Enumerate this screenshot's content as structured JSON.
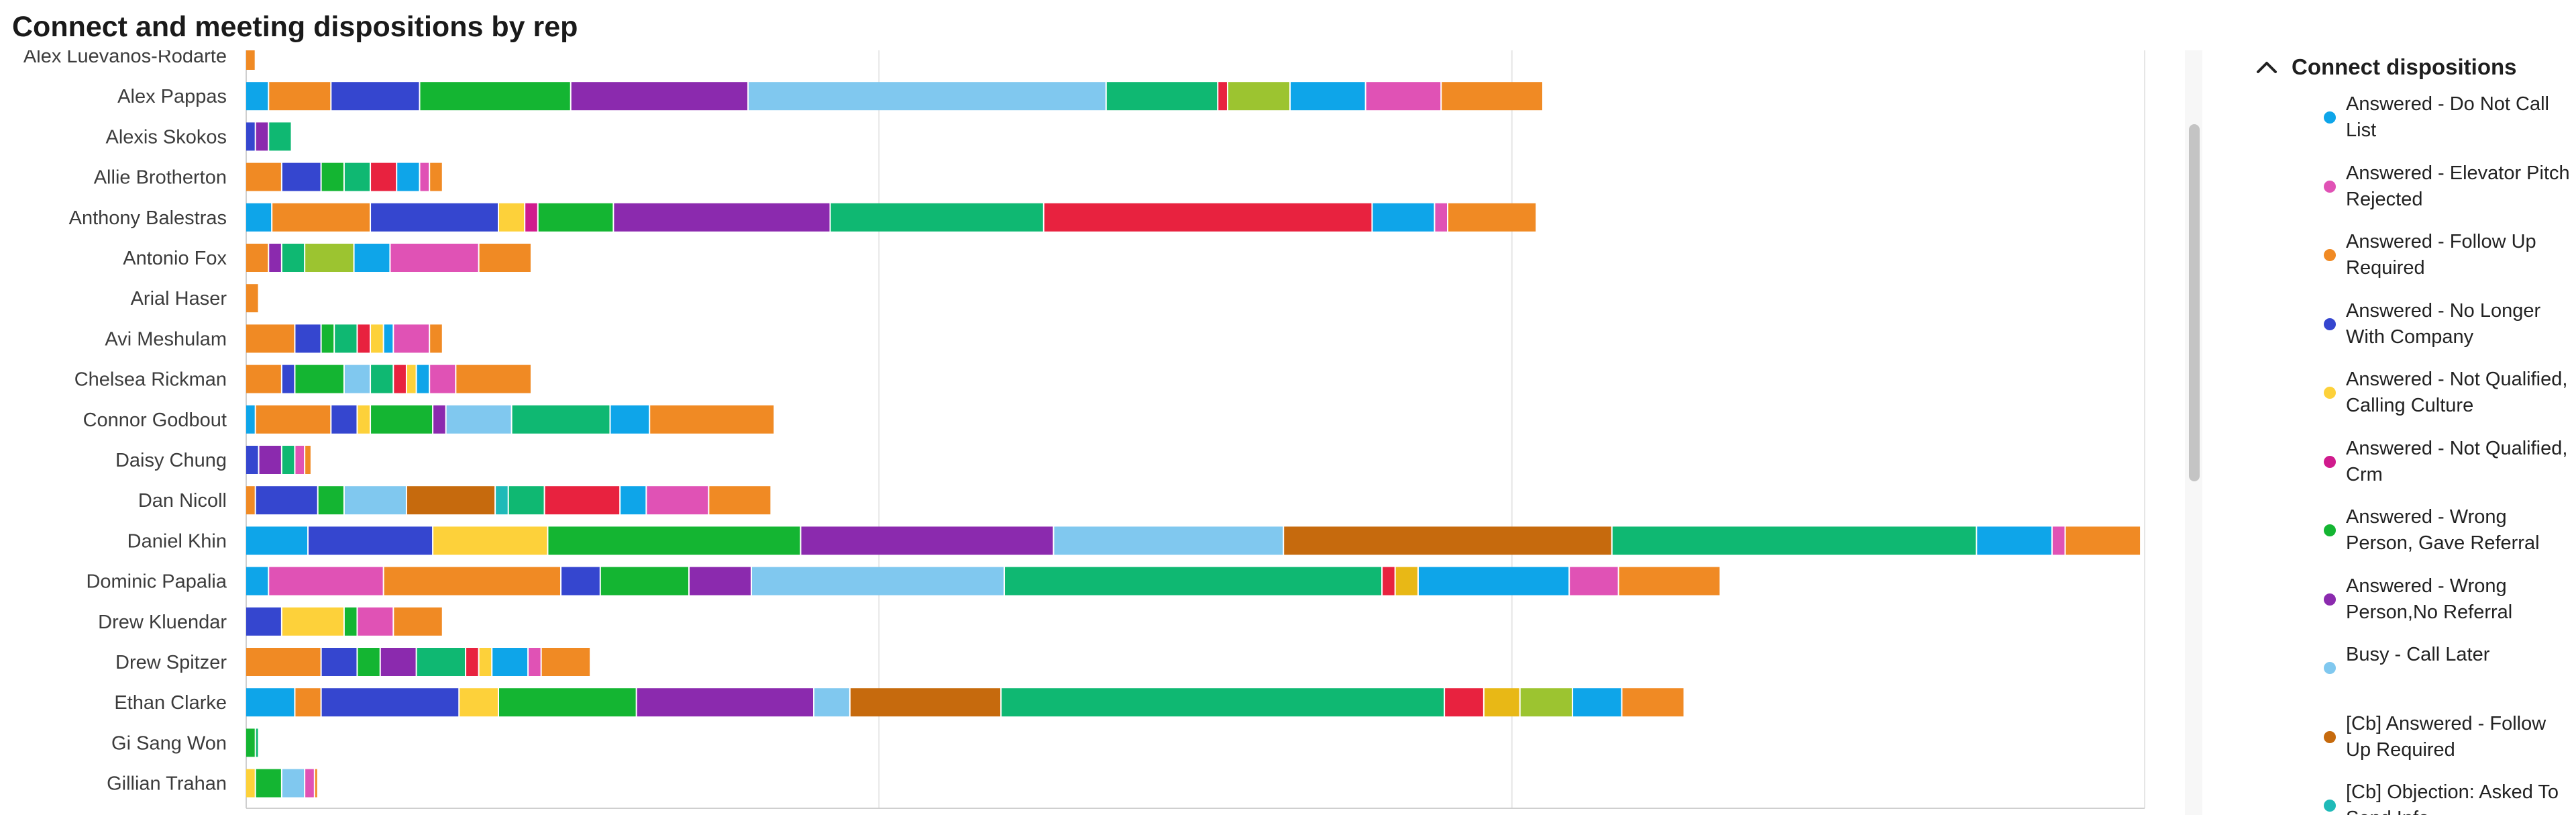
{
  "title": "Connect and meeting dispositions by rep",
  "legend": {
    "title": "Connect dispositions",
    "items": [
      {
        "label": "Answered - Do Not Call List",
        "color": "#0ea5e9"
      },
      {
        "label": "Answered - Elevator Pitch Rejected",
        "color": "#e052b5"
      },
      {
        "label": "Answered - Follow Up Required",
        "color": "#f08a24"
      },
      {
        "label": "Answered - No Longer With Company",
        "color": "#3546cf"
      },
      {
        "label": "Answered - Not Qualified, Calling Culture",
        "color": "#fdd13a"
      },
      {
        "label": "Answered - Not Qualified, Crm",
        "color": "#d01b8d"
      },
      {
        "label": "Answered - Wrong Person, Gave Referral",
        "color": "#14b532"
      },
      {
        "label": "Answered - Wrong Person,No Referral",
        "color": "#8b2aae"
      },
      {
        "label": "Busy - Call Later",
        "color": "#80c8ef"
      },
      {
        "label": "[Cb] Answered - Follow Up Required",
        "color": "#c66a0d"
      },
      {
        "label": "[Cb] Objection: Asked To Send Info",
        "color": "#1fbab8"
      }
    ]
  },
  "chart_data": {
    "type": "bar",
    "orientation": "horizontal",
    "stacked": true,
    "title": "Connect and meeting dispositions by rep",
    "grid": true,
    "categories": [
      "Alex Luevanos-Rodarte",
      "Alex Pappas",
      "Alexis Skokos",
      "Allie Brotherton",
      "Anthony Balestras",
      "Antonio Fox",
      "Arial Haser",
      "Avi Meshulam",
      "Chelsea Rickman",
      "Connor Godbout",
      "Daisy Chung",
      "Dan Nicoll",
      "Daniel Khin",
      "Dominic Papalia",
      "Drew Kluendar",
      "Drew Spitzer",
      "Ethan Clarke",
      "Gi Sang Won",
      "Gillian Trahan"
    ],
    "rows": [
      [
        [
          6,
          "#f08a24"
        ]
      ],
      [
        [
          14,
          "#0ea5e9"
        ],
        [
          38,
          "#f08a24"
        ],
        [
          54,
          "#3546cf"
        ],
        [
          92,
          "#14b532"
        ],
        [
          108,
          "#8b2aae"
        ],
        [
          218,
          "#80c8ef"
        ],
        [
          68,
          "#0fb872"
        ],
        [
          6,
          "#e8223f"
        ],
        [
          38,
          "#9cc430"
        ],
        [
          46,
          "#0ea5e9"
        ],
        [
          46,
          "#e052b5"
        ],
        [
          62,
          "#f08a24"
        ]
      ],
      [
        [
          6,
          "#3546cf"
        ],
        [
          8,
          "#8b2aae"
        ],
        [
          14,
          "#0fb872"
        ]
      ],
      [
        [
          22,
          "#f08a24"
        ],
        [
          24,
          "#3546cf"
        ],
        [
          14,
          "#14b532"
        ],
        [
          16,
          "#0fb872"
        ],
        [
          16,
          "#e8223f"
        ],
        [
          14,
          "#0ea5e9"
        ],
        [
          6,
          "#e052b5"
        ],
        [
          8,
          "#f08a24"
        ]
      ],
      [
        [
          16,
          "#0ea5e9"
        ],
        [
          60,
          "#f08a24"
        ],
        [
          78,
          "#3546cf"
        ],
        [
          16,
          "#fdd13a"
        ],
        [
          8,
          "#d01b8d"
        ],
        [
          46,
          "#14b532"
        ],
        [
          132,
          "#8b2aae"
        ],
        [
          130,
          "#0fb872"
        ],
        [
          200,
          "#e8223f"
        ],
        [
          38,
          "#0ea5e9"
        ],
        [
          8,
          "#e052b5"
        ],
        [
          54,
          "#f08a24"
        ]
      ],
      [
        [
          14,
          "#f08a24"
        ],
        [
          8,
          "#8b2aae"
        ],
        [
          14,
          "#0fb872"
        ],
        [
          30,
          "#9cc430"
        ],
        [
          22,
          "#0ea5e9"
        ],
        [
          54,
          "#e052b5"
        ],
        [
          32,
          "#f08a24"
        ]
      ],
      [
        [
          8,
          "#f08a24"
        ]
      ],
      [
        [
          30,
          "#f08a24"
        ],
        [
          16,
          "#3546cf"
        ],
        [
          8,
          "#14b532"
        ],
        [
          14,
          "#0fb872"
        ],
        [
          8,
          "#e8223f"
        ],
        [
          8,
          "#fdd13a"
        ],
        [
          6,
          "#0ea5e9"
        ],
        [
          22,
          "#e052b5"
        ],
        [
          8,
          "#f08a24"
        ]
      ],
      [
        [
          22,
          "#f08a24"
        ],
        [
          8,
          "#3546cf"
        ],
        [
          30,
          "#14b532"
        ],
        [
          16,
          "#80c8ef"
        ],
        [
          14,
          "#0fb872"
        ],
        [
          8,
          "#e8223f"
        ],
        [
          6,
          "#fdd13a"
        ],
        [
          8,
          "#0ea5e9"
        ],
        [
          16,
          "#e052b5"
        ],
        [
          46,
          "#f08a24"
        ]
      ],
      [
        [
          6,
          "#0ea5e9"
        ],
        [
          46,
          "#f08a24"
        ],
        [
          16,
          "#3546cf"
        ],
        [
          8,
          "#fdd13a"
        ],
        [
          38,
          "#14b532"
        ],
        [
          8,
          "#8b2aae"
        ],
        [
          40,
          "#80c8ef"
        ],
        [
          60,
          "#0fb872"
        ],
        [
          24,
          "#0ea5e9"
        ],
        [
          76,
          "#f08a24"
        ]
      ],
      [
        [
          8,
          "#3546cf"
        ],
        [
          14,
          "#8b2aae"
        ],
        [
          8,
          "#0fb872"
        ],
        [
          6,
          "#e052b5"
        ],
        [
          4,
          "#f08a24"
        ]
      ],
      [
        [
          6,
          "#f08a24"
        ],
        [
          38,
          "#3546cf"
        ],
        [
          16,
          "#14b532"
        ],
        [
          38,
          "#80c8ef"
        ],
        [
          54,
          "#c66a0d"
        ],
        [
          8,
          "#1fbab8"
        ],
        [
          22,
          "#0fb872"
        ],
        [
          46,
          "#e8223f"
        ],
        [
          16,
          "#0ea5e9"
        ],
        [
          38,
          "#e052b5"
        ],
        [
          38,
          "#f08a24"
        ]
      ],
      [
        [
          38,
          "#0ea5e9"
        ],
        [
          76,
          "#3546cf"
        ],
        [
          70,
          "#fdd13a"
        ],
        [
          154,
          "#14b532"
        ],
        [
          154,
          "#8b2aae"
        ],
        [
          140,
          "#80c8ef"
        ],
        [
          200,
          "#c66a0d"
        ],
        [
          222,
          "#0fb872"
        ],
        [
          46,
          "#0ea5e9"
        ],
        [
          8,
          "#e052b5"
        ],
        [
          46,
          "#f08a24"
        ]
      ],
      [
        [
          14,
          "#0ea5e9"
        ],
        [
          70,
          "#e052b5"
        ],
        [
          108,
          "#f08a24"
        ],
        [
          24,
          "#3546cf"
        ],
        [
          54,
          "#14b532"
        ],
        [
          38,
          "#8b2aae"
        ],
        [
          154,
          "#80c8ef"
        ],
        [
          230,
          "#0fb872"
        ],
        [
          8,
          "#e8223f"
        ],
        [
          14,
          "#e8b816"
        ],
        [
          92,
          "#0ea5e9"
        ],
        [
          30,
          "#e052b5"
        ],
        [
          62,
          "#f08a24"
        ]
      ],
      [
        [
          22,
          "#3546cf"
        ],
        [
          38,
          "#fdd13a"
        ],
        [
          8,
          "#14b532"
        ],
        [
          22,
          "#e052b5"
        ],
        [
          30,
          "#f08a24"
        ]
      ],
      [
        [
          46,
          "#f08a24"
        ],
        [
          22,
          "#3546cf"
        ],
        [
          14,
          "#14b532"
        ],
        [
          22,
          "#8b2aae"
        ],
        [
          30,
          "#0fb872"
        ],
        [
          8,
          "#e8223f"
        ],
        [
          8,
          "#fdd13a"
        ],
        [
          22,
          "#0ea5e9"
        ],
        [
          8,
          "#e052b5"
        ],
        [
          30,
          "#f08a24"
        ]
      ],
      [
        [
          30,
          "#0ea5e9"
        ],
        [
          16,
          "#f08a24"
        ],
        [
          84,
          "#3546cf"
        ],
        [
          24,
          "#fdd13a"
        ],
        [
          84,
          "#14b532"
        ],
        [
          108,
          "#8b2aae"
        ],
        [
          22,
          "#80c8ef"
        ],
        [
          92,
          "#c66a0d"
        ],
        [
          270,
          "#0fb872"
        ],
        [
          24,
          "#e8223f"
        ],
        [
          22,
          "#e8b816"
        ],
        [
          32,
          "#9cc430"
        ],
        [
          30,
          "#0ea5e9"
        ],
        [
          38,
          "#f08a24"
        ]
      ],
      [
        [
          6,
          "#14b532"
        ],
        [
          2,
          "#0fb872"
        ]
      ],
      [
        [
          6,
          "#fdd13a"
        ],
        [
          16,
          "#14b532"
        ],
        [
          14,
          "#80c8ef"
        ],
        [
          6,
          "#e052b5"
        ],
        [
          2,
          "#f08a24"
        ]
      ]
    ],
    "xlim": [
      0,
      1156
    ]
  }
}
